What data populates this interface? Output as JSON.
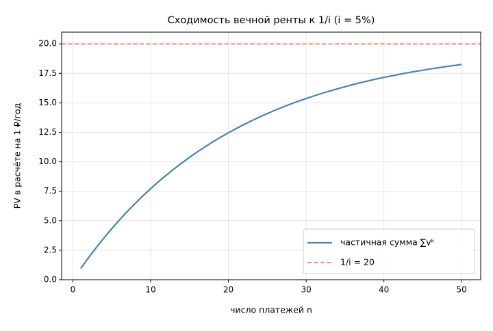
{
  "chart_data": {
    "type": "line",
    "title": "Сходимость вечной ренты к 1/i (i = 5%)",
    "x_label": "число платежей n",
    "y_label": "PV в расчёте на 1 ₽/год",
    "x": [
      1,
      2,
      3,
      4,
      5,
      6,
      7,
      8,
      9,
      10,
      11,
      12,
      13,
      14,
      15,
      16,
      17,
      18,
      19,
      20,
      21,
      22,
      23,
      24,
      25,
      26,
      27,
      28,
      29,
      30,
      31,
      32,
      33,
      34,
      35,
      36,
      37,
      38,
      39,
      40,
      41,
      42,
      43,
      44,
      45,
      46,
      47,
      48,
      49,
      50
    ],
    "series": [
      {
        "name": "частичная сумма ∑vᵏ",
        "color": "#4682b4",
        "values": [
          0.95,
          1.86,
          2.72,
          3.55,
          4.33,
          5.08,
          5.79,
          6.46,
          7.11,
          7.72,
          8.31,
          8.86,
          9.39,
          9.9,
          10.38,
          10.84,
          11.27,
          11.69,
          12.09,
          12.46,
          12.82,
          13.16,
          13.49,
          13.8,
          14.09,
          14.38,
          14.64,
          14.9,
          15.14,
          15.37,
          15.59,
          15.8,
          16.0,
          16.19,
          16.37,
          16.55,
          16.71,
          16.87,
          17.02,
          17.16,
          17.29,
          17.42,
          17.55,
          17.66,
          17.77,
          17.88,
          17.98,
          18.08,
          18.17,
          18.26
        ]
      }
    ],
    "reference_line": {
      "name": "1/i = 20",
      "value": 20,
      "color": "#ff6347"
    },
    "xlim": [
      -1.45,
      52.45
    ],
    "xticks": [
      0,
      10,
      20,
      30,
      40,
      50
    ],
    "ylim": [
      0,
      21
    ],
    "yticks": [
      {
        "value": 0,
        "label": "0.0"
      },
      2.5,
      {
        "value": 5,
        "label": "5.0"
      },
      7.5,
      {
        "value": 10,
        "label": "10.0"
      },
      12.5,
      {
        "value": 15,
        "label": "15.0"
      },
      17.5,
      {
        "value": 20,
        "label": "20.0"
      }
    ],
    "grid": true,
    "legend": "lower right"
  }
}
